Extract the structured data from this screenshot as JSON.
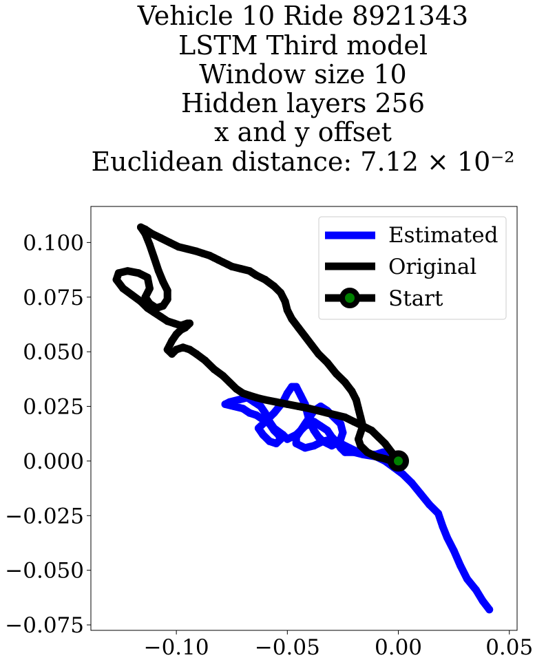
{
  "chart_data": {
    "type": "line",
    "title_lines": [
      "Vehicle 10 Ride 8921343",
      "LSTM Third model",
      "Window size 10",
      "Hidden layers 256",
      "x and y offset",
      "Euclidean distance: 7.12 × 10⁻²"
    ],
    "xlabel": "",
    "ylabel": "",
    "xlim": [
      -0.1385,
      0.0535
    ],
    "ylim": [
      -0.0775,
      0.1165
    ],
    "x_ticks": [
      -0.1,
      -0.05,
      0.0,
      0.05
    ],
    "x_tick_labels": [
      "−0.10",
      "−0.05",
      "0.00",
      "0.05"
    ],
    "y_ticks": [
      -0.075,
      -0.05,
      -0.025,
      0.0,
      0.025,
      0.05,
      0.075,
      0.1
    ],
    "y_tick_labels": [
      "−0.075",
      "−0.050",
      "−0.025",
      "0.000",
      "0.025",
      "0.050",
      "0.075",
      "0.100"
    ],
    "grid": false,
    "legend_position": "top-right",
    "series": [
      {
        "name": "Estimated",
        "color": "#0000ff",
        "x": [
          0.041,
          0.038,
          0.035,
          0.031,
          0.028,
          0.025,
          0.022,
          0.02,
          0.018,
          0.014,
          0.01,
          0.006,
          0.002,
          -0.002,
          -0.006,
          -0.01,
          -0.016,
          -0.02,
          -0.024,
          -0.026,
          -0.028,
          -0.03,
          -0.032,
          -0.035,
          -0.038,
          -0.042,
          -0.044,
          -0.046,
          -0.05,
          -0.052,
          -0.056,
          -0.058,
          -0.06,
          -0.062,
          -0.065,
          -0.068,
          -0.072,
          -0.076,
          -0.078,
          -0.074,
          -0.07,
          -0.067,
          -0.064,
          -0.061,
          -0.058,
          -0.056,
          -0.054,
          -0.053,
          -0.055,
          -0.058,
          -0.061,
          -0.063,
          -0.06,
          -0.056,
          -0.052,
          -0.05,
          -0.048,
          -0.046,
          -0.044,
          -0.042,
          -0.041,
          -0.04,
          -0.038,
          -0.036,
          -0.034,
          -0.032,
          -0.03,
          -0.028,
          -0.026,
          -0.025,
          -0.026,
          -0.029,
          -0.032,
          -0.035,
          -0.038,
          -0.04,
          -0.042,
          -0.044,
          -0.046,
          -0.046,
          -0.042,
          -0.038,
          -0.034,
          -0.03,
          -0.026,
          -0.022,
          -0.018,
          -0.014,
          -0.01,
          -0.007,
          -0.004,
          -0.002,
          0.0
        ],
        "y": [
          -0.068,
          -0.064,
          -0.059,
          -0.054,
          -0.048,
          -0.041,
          -0.035,
          -0.03,
          -0.024,
          -0.02,
          -0.015,
          -0.01,
          -0.006,
          -0.003,
          0.0,
          0.002,
          0.003,
          0.004,
          0.004,
          0.006,
          0.009,
          0.011,
          0.014,
          0.016,
          0.018,
          0.016,
          0.014,
          0.012,
          0.01,
          0.012,
          0.015,
          0.018,
          0.022,
          0.025,
          0.027,
          0.029,
          0.028,
          0.027,
          0.026,
          0.025,
          0.024,
          0.022,
          0.021,
          0.019,
          0.017,
          0.014,
          0.012,
          0.01,
          0.008,
          0.009,
          0.012,
          0.015,
          0.018,
          0.022,
          0.027,
          0.031,
          0.034,
          0.034,
          0.03,
          0.026,
          0.022,
          0.018,
          0.014,
          0.011,
          0.009,
          0.008,
          0.007,
          0.008,
          0.01,
          0.013,
          0.017,
          0.02,
          0.023,
          0.025,
          0.023,
          0.02,
          0.017,
          0.014,
          0.011,
          0.008,
          0.006,
          0.007,
          0.009,
          0.01,
          0.008,
          0.006,
          0.004,
          0.003,
          0.003,
          0.004,
          0.004,
          0.003,
          0.0
        ]
      },
      {
        "name": "Original",
        "color": "#000000",
        "x": [
          0.0,
          -0.003,
          -0.006,
          -0.009,
          -0.012,
          -0.016,
          -0.02,
          -0.024,
          -0.028,
          -0.032,
          -0.036,
          -0.04,
          -0.045,
          -0.05,
          -0.055,
          -0.06,
          -0.064,
          -0.067,
          -0.07,
          -0.073,
          -0.076,
          -0.079,
          -0.083,
          -0.087,
          -0.091,
          -0.094,
          -0.097,
          -0.1,
          -0.102,
          -0.104,
          -0.102,
          -0.1,
          -0.098,
          -0.096,
          -0.095,
          -0.094,
          -0.095,
          -0.098,
          -0.101,
          -0.104,
          -0.107,
          -0.11,
          -0.113,
          -0.116,
          -0.12,
          -0.124,
          -0.127,
          -0.126,
          -0.122,
          -0.117,
          -0.113,
          -0.112,
          -0.114,
          -0.112,
          -0.109,
          -0.106,
          -0.104,
          -0.104,
          -0.106,
          -0.108,
          -0.11,
          -0.112,
          -0.114,
          -0.116,
          -0.114,
          -0.111,
          -0.107,
          -0.103,
          -0.099,
          -0.095,
          -0.091,
          -0.088,
          -0.085,
          -0.083,
          -0.081,
          -0.079,
          -0.077,
          -0.075,
          -0.071,
          -0.067,
          -0.064,
          -0.06,
          -0.056,
          -0.053,
          -0.051,
          -0.05,
          -0.048,
          -0.045,
          -0.042,
          -0.039,
          -0.036,
          -0.032,
          -0.028,
          -0.024,
          -0.021,
          -0.019,
          -0.018,
          -0.017,
          -0.016,
          -0.017,
          -0.018,
          -0.017,
          -0.014,
          -0.01,
          -0.006,
          -0.003,
          0.0
        ],
        "y": [
          0.0,
          0.004,
          0.008,
          0.011,
          0.014,
          0.016,
          0.018,
          0.02,
          0.021,
          0.022,
          0.023,
          0.024,
          0.025,
          0.026,
          0.027,
          0.028,
          0.029,
          0.03,
          0.031,
          0.033,
          0.036,
          0.039,
          0.042,
          0.046,
          0.049,
          0.051,
          0.052,
          0.051,
          0.049,
          0.051,
          0.055,
          0.058,
          0.06,
          0.061,
          0.062,
          0.063,
          0.063,
          0.062,
          0.063,
          0.064,
          0.066,
          0.068,
          0.07,
          0.073,
          0.076,
          0.079,
          0.083,
          0.086,
          0.087,
          0.086,
          0.084,
          0.079,
          0.075,
          0.072,
          0.07,
          0.071,
          0.074,
          0.078,
          0.082,
          0.087,
          0.093,
          0.099,
          0.104,
          0.107,
          0.106,
          0.104,
          0.102,
          0.1,
          0.098,
          0.097,
          0.096,
          0.095,
          0.094,
          0.093,
          0.092,
          0.091,
          0.09,
          0.089,
          0.088,
          0.087,
          0.085,
          0.083,
          0.08,
          0.077,
          0.073,
          0.069,
          0.065,
          0.061,
          0.057,
          0.053,
          0.049,
          0.045,
          0.04,
          0.036,
          0.032,
          0.028,
          0.024,
          0.02,
          0.016,
          0.013,
          0.01,
          0.007,
          0.004,
          0.002,
          0.001,
          0.0,
          0.0
        ]
      }
    ],
    "start_marker": {
      "name": "Start",
      "x": 0.0,
      "y": 0.0,
      "edge_color": "#000000",
      "face_color": "#008000"
    }
  }
}
